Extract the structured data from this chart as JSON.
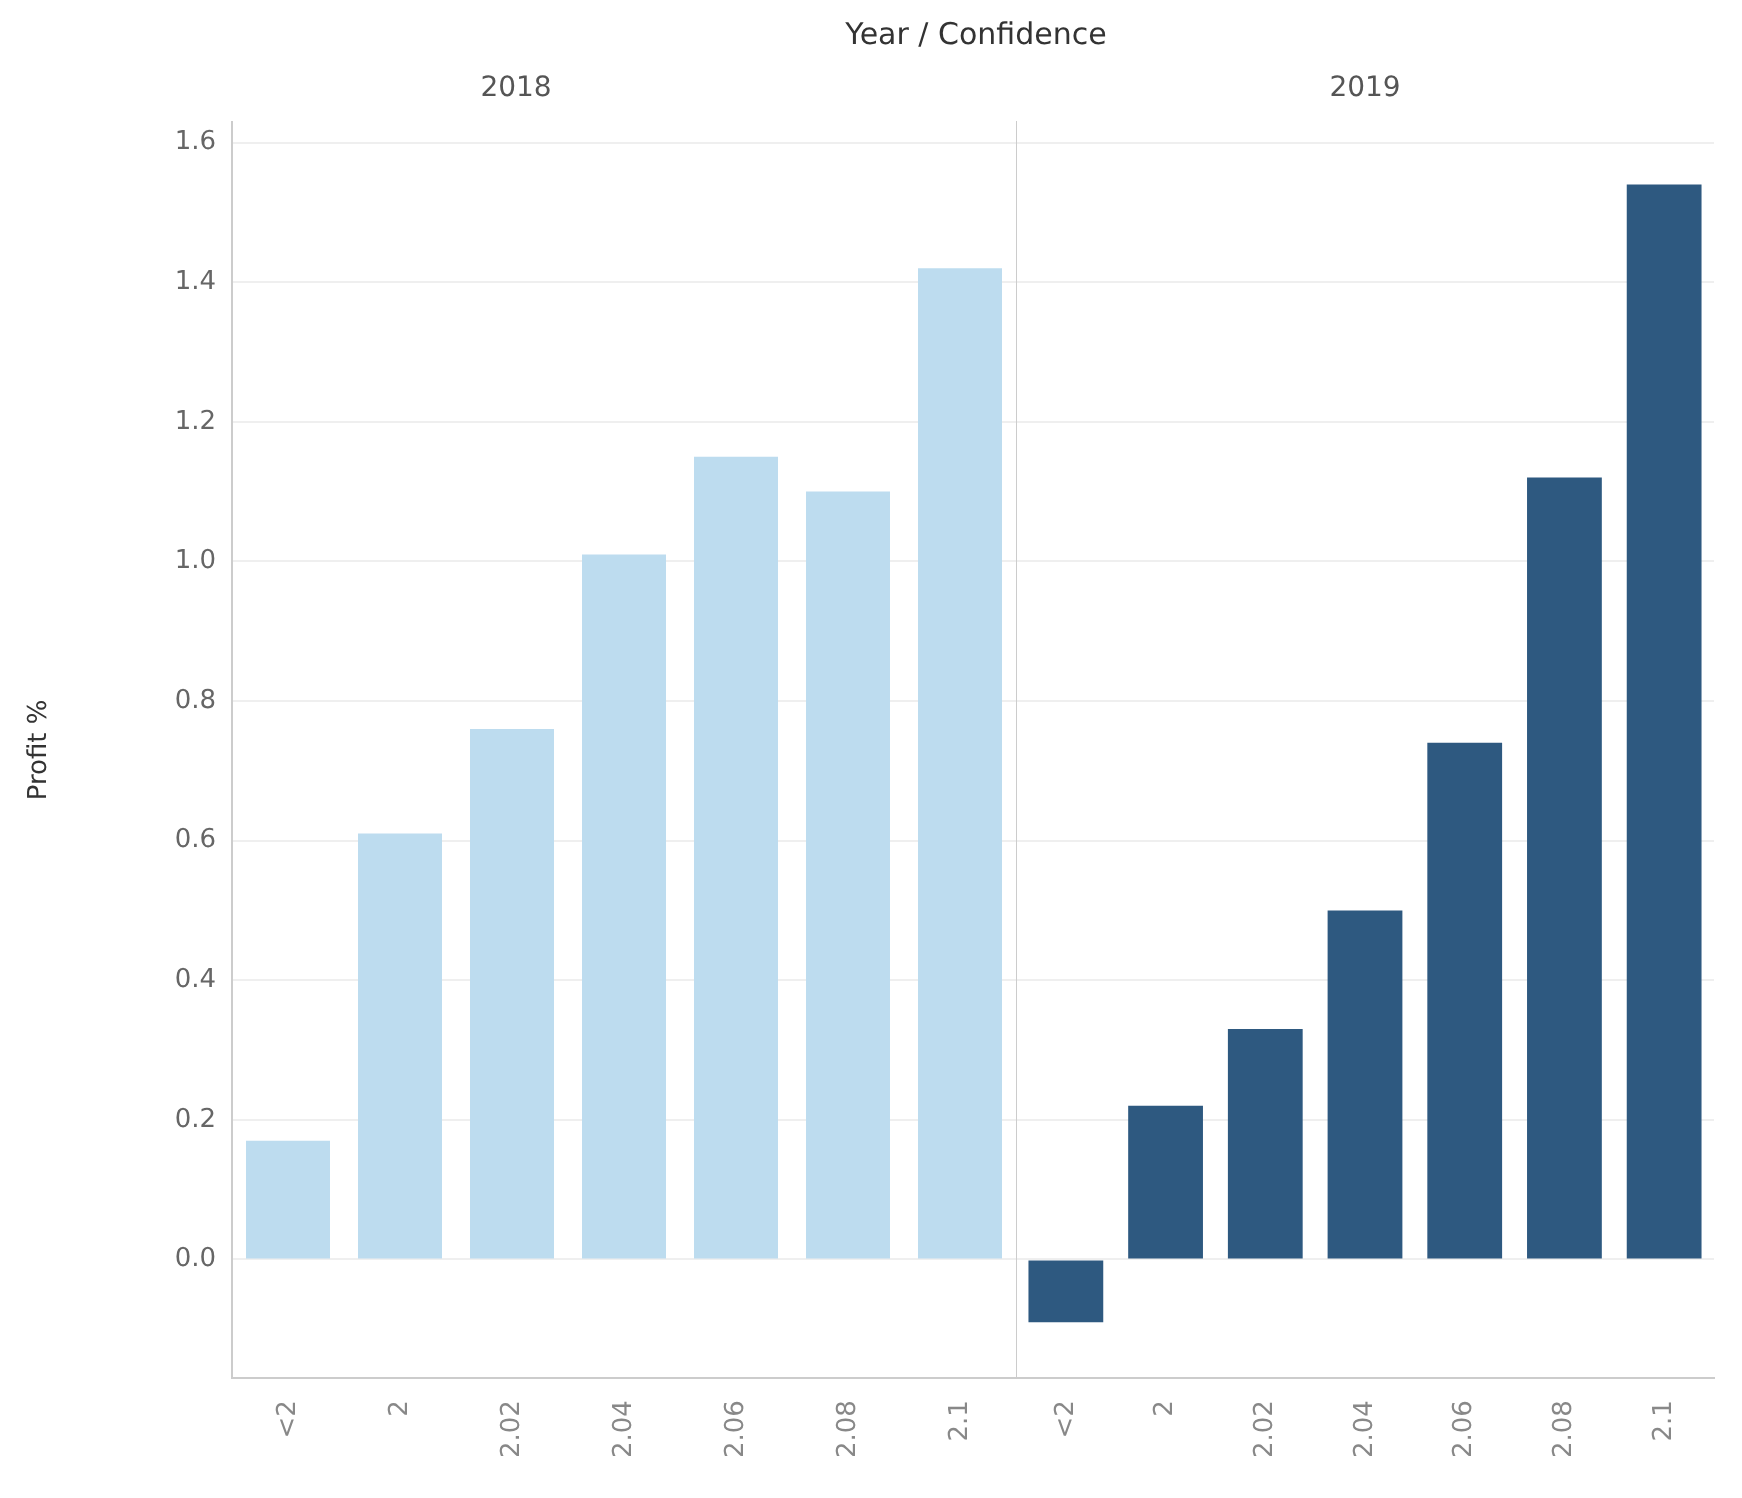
{
  "chart_data": [
    {
      "type": "bar",
      "title": "2018",
      "ylabel": "Profit %",
      "annotations": [
        "Year / Confidence"
      ],
      "categories": [
        "<2",
        "2",
        "2.02",
        "2.04",
        "2.06",
        "2.08",
        "2.1"
      ],
      "values": [
        0.17,
        0.61,
        0.76,
        1.01,
        1.15,
        1.1,
        1.42
      ],
      "color": "#bddcef",
      "ylim": [
        -0.17,
        1.63
      ],
      "yticks": [
        {
          "value": 0,
          "label": "0.0"
        },
        0.2,
        0.4,
        0.6,
        0.8,
        {
          "value": 1,
          "label": "1.0"
        },
        1.2,
        1.4,
        1.6
      ],
      "grid": "y"
    },
    {
      "type": "bar",
      "title": "2019",
      "categories": [
        "<2",
        "2",
        "2.02",
        "2.04",
        "2.06",
        "2.08",
        "2.1"
      ],
      "values": [
        -0.09,
        0.22,
        0.33,
        0.5,
        0.74,
        1.12,
        1.54
      ],
      "color": "#2e5980",
      "ylim": [
        -0.17,
        1.63
      ],
      "yticks": [
        0,
        0.2,
        0.4,
        0.6,
        0.8,
        1,
        1.2,
        1.4,
        1.6
      ],
      "grid": "y",
      "tick_labels": "x"
    }
  ]
}
